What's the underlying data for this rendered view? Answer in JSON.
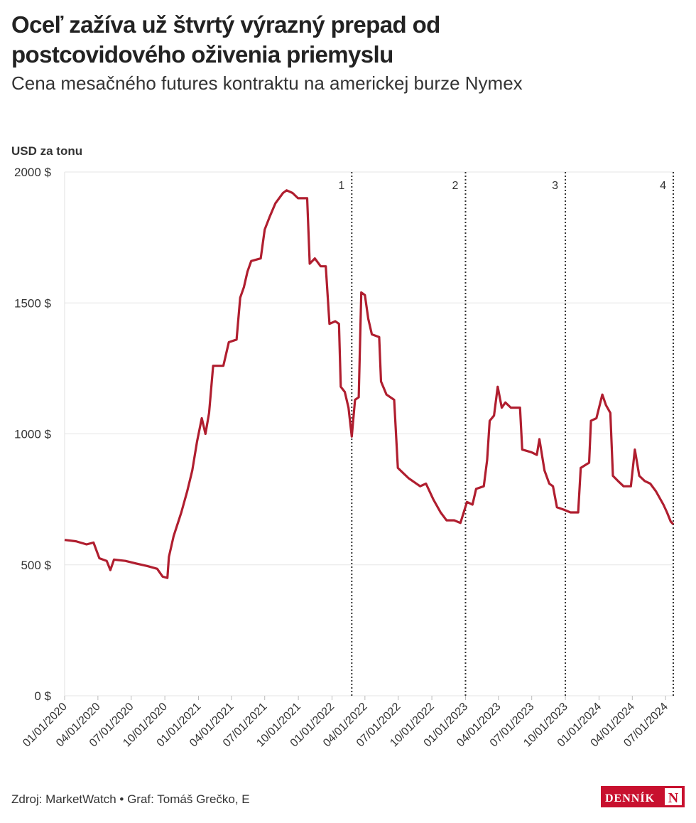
{
  "chart_data": {
    "type": "line",
    "title": "Oceľ zažíva už štvrtý výrazný prepad od postcovidového oživenia priemyslu",
    "subtitle": "Cena mesačného futures kontraktu na americkej burze Nymex",
    "y_label": "USD za tonu",
    "source": "Zdroj: MarketWatch • Graf: Tomáš Grečko, E",
    "logo": {
      "text": "DENNÍK",
      "mark": "N"
    },
    "grid": true,
    "x": [
      "01/01/2020",
      "02/01/2020",
      "03/01/2020",
      "03/20/2020",
      "04/05/2020",
      "04/25/2020",
      "05/05/2020",
      "05/15/2020",
      "06/15/2020",
      "07/15/2020",
      "08/15/2020",
      "09/10/2020",
      "09/25/2020",
      "10/08/2020",
      "10/12/2020",
      "10/25/2020",
      "11/15/2020",
      "12/01/2020",
      "12/15/2020",
      "12/28/2020",
      "01/10/2021",
      "01/20/2021",
      "01/30/2021",
      "02/10/2021",
      "03/10/2021",
      "03/25/2021",
      "04/15/2021",
      "04/25/2021",
      "05/05/2021",
      "05/15/2021",
      "05/25/2021",
      "06/20/2021",
      "07/01/2021",
      "07/15/2021",
      "07/30/2021",
      "08/20/2021",
      "08/30/2021",
      "09/15/2021",
      "09/30/2021",
      "10/25/2021",
      "11/01/2021",
      "11/15/2021",
      "12/01/2021",
      "12/15/2021",
      "12/25/2021",
      "01/10/2022",
      "01/20/2022",
      "01/25/2022",
      "02/05/2022",
      "02/15/2022",
      "02/24/2022",
      "03/05/2022",
      "03/15/2022",
      "03/22/2022",
      "04/01/2022",
      "04/10/2022",
      "04/20/2022",
      "05/10/2022",
      "05/15/2022",
      "05/30/2022",
      "06/20/2022",
      "06/30/2022",
      "07/15/2022",
      "07/30/2022",
      "08/30/2022",
      "09/15/2022",
      "10/05/2022",
      "10/25/2022",
      "11/10/2022",
      "12/01/2022",
      "12/18/2022",
      "01/05/2023",
      "01/20/2023",
      "01/30/2023",
      "02/20/2023",
      "03/01/2023",
      "03/08/2023",
      "03/20/2023",
      "03/30/2023",
      "04/10/2023",
      "04/20/2023",
      "05/05/2023",
      "05/30/2023",
      "06/05/2023",
      "06/30/2023",
      "07/15/2023",
      "07/22/2023",
      "08/05/2023",
      "08/18/2023",
      "08/28/2023",
      "09/08/2023",
      "09/28/2023",
      "10/15/2023",
      "10/25/2023",
      "11/05/2023",
      "11/12/2023",
      "12/05/2023",
      "12/10/2023",
      "12/25/2023",
      "01/10/2024",
      "01/20/2024",
      "02/01/2024",
      "02/08/2024",
      "02/22/2024",
      "03/08/2024",
      "03/28/2024",
      "04/08/2024",
      "04/20/2024",
      "05/05/2024",
      "05/20/2024",
      "06/05/2024",
      "06/25/2024",
      "07/05/2024",
      "07/15/2024",
      "07/22/2024"
    ],
    "series": [
      {
        "name": "Oceľ",
        "color": "#b01e2f",
        "values": [
          595,
          590,
          578,
          585,
          525,
          515,
          480,
          520,
          515,
          505,
          495,
          485,
          455,
          450,
          530,
          610,
          700,
          780,
          860,
          970,
          1060,
          1000,
          1080,
          1260,
          1260,
          1350,
          1360,
          1520,
          1560,
          1620,
          1660,
          1670,
          1780,
          1830,
          1880,
          1920,
          1930,
          1920,
          1900,
          1900,
          1650,
          1670,
          1640,
          1640,
          1420,
          1430,
          1420,
          1180,
          1160,
          1100,
          990,
          1130,
          1140,
          1540,
          1530,
          1440,
          1380,
          1370,
          1200,
          1150,
          1130,
          870,
          850,
          830,
          800,
          810,
          750,
          700,
          670,
          670,
          660,
          740,
          730,
          790,
          800,
          900,
          1050,
          1070,
          1180,
          1100,
          1120,
          1100,
          1100,
          940,
          930,
          920,
          980,
          860,
          810,
          800,
          720,
          710,
          700,
          700,
          700,
          870,
          890,
          1050,
          1060,
          1150,
          1110,
          1080,
          840,
          820,
          800,
          800,
          940,
          840,
          820,
          810,
          780,
          730,
          700,
          665,
          655
        ]
      }
    ],
    "xlim": [
      "01/01/2020",
      "07/22/2024"
    ],
    "xticks": [
      "01/01/2020",
      "04/01/2020",
      "07/01/2020",
      "10/01/2020",
      "01/01/2021",
      "04/01/2021",
      "07/01/2021",
      "10/01/2021",
      "01/01/2022",
      "04/01/2022",
      "07/01/2022",
      "10/01/2022",
      "01/01/2023",
      "04/01/2023",
      "07/01/2023",
      "10/01/2023",
      "01/01/2024",
      "04/01/2024",
      "07/01/2024"
    ],
    "ylim": [
      0,
      2000
    ],
    "yticks": [
      {
        "value": 0,
        "label": "0 $"
      },
      {
        "value": 500,
        "label": "500 $"
      },
      {
        "value": 1000,
        "label": "1000 $"
      },
      {
        "value": 1500,
        "label": "1500 $"
      },
      {
        "value": 2000,
        "label": "2000 $"
      }
    ],
    "markers": [
      {
        "x": "02/24/2022",
        "label": "1"
      },
      {
        "x": "01/01/2023",
        "label": "2"
      },
      {
        "x": "10/01/2023",
        "label": "3"
      },
      {
        "x": "07/22/2024",
        "label": "4"
      }
    ]
  }
}
